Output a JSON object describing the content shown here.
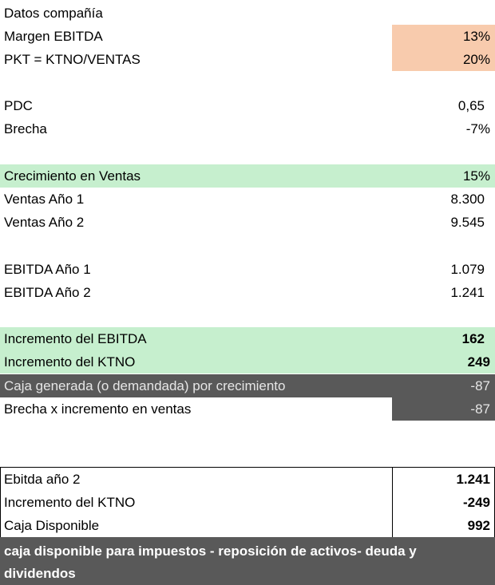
{
  "rows": [
    {
      "label": "Datos compañía"
    },
    {
      "label": "Margen EBITDA",
      "value": "13%"
    },
    {
      "label": "PKT = KTNO/VENTAS",
      "value": "20%"
    },
    {
      "label": "PDC",
      "value": "0,65"
    },
    {
      "label": "Brecha",
      "value": "-7%"
    },
    {
      "label": "Crecimiento en Ventas",
      "value": "15%"
    },
    {
      "label": "Ventas Año 1",
      "value": "8.300"
    },
    {
      "label": "Ventas Año 2",
      "value": "9.545"
    },
    {
      "label": "EBITDA Año 1",
      "value": "1.079"
    },
    {
      "label": "EBITDA Año 2",
      "value": "1.241"
    },
    {
      "label": "Incremento del EBITDA",
      "value": "162"
    },
    {
      "label": "Incremento del KTNO",
      "value": "249"
    },
    {
      "label": "Caja generada (o demandada) por crecimiento",
      "value": "-87"
    },
    {
      "label": "Brecha x incremento en ventas",
      "value": "-87"
    }
  ],
  "summary": {
    "rows": [
      {
        "label": "Ebitda año 2",
        "value": "1.241"
      },
      {
        "label": "Incremento del KTNO",
        "value": "-249"
      },
      {
        "label": "Caja Disponible",
        "value": "992"
      }
    ],
    "footer": "caja disponible para impuestos - reposición de activos- deuda y dividendos"
  }
}
